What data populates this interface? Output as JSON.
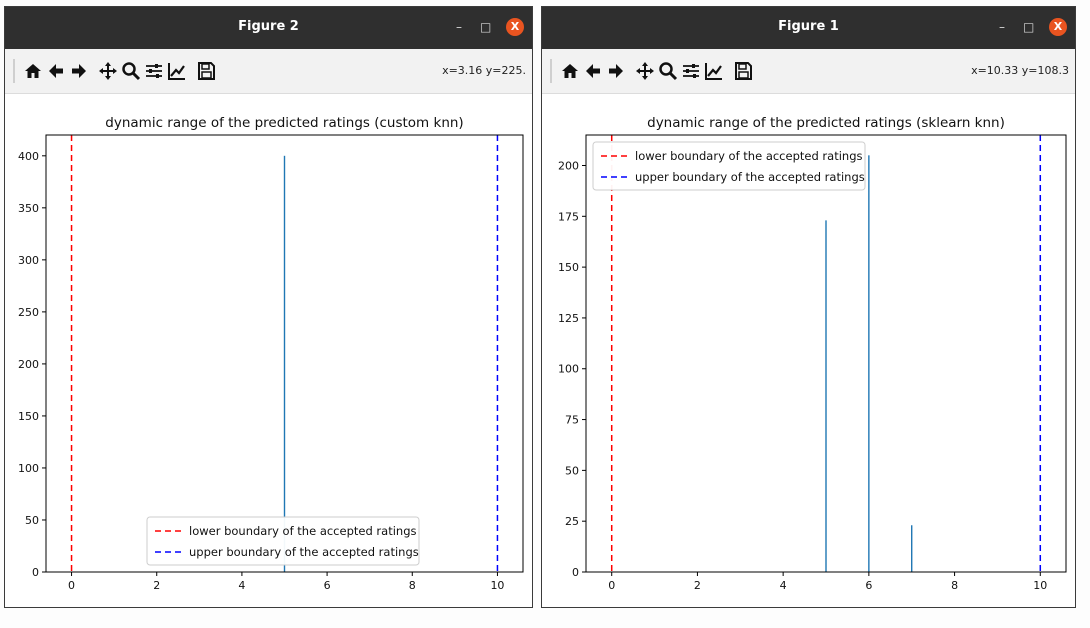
{
  "windows": [
    {
      "title": "Figure 2",
      "coords": "x=3.16 y=225.",
      "controls": {
        "minimize": "–",
        "maximize": "□",
        "close": "X"
      }
    },
    {
      "title": "Figure 1",
      "coords": "x=10.33 y=108.3",
      "controls": {
        "minimize": "–",
        "maximize": "□",
        "close": "X"
      }
    }
  ],
  "toolbar_icons": [
    "home-icon",
    "back-icon",
    "forward-icon",
    "pan-icon",
    "zoom-icon",
    "configure-subplots-icon",
    "edit-axis-icon",
    "save-icon"
  ],
  "chart_data": [
    {
      "type": "bar",
      "title": "dynamic range of the predicted ratings (custom knn)",
      "xlim": [
        -0.6,
        10.6
      ],
      "ylim": [
        0,
        420
      ],
      "xticks": [
        0,
        2,
        4,
        6,
        8,
        10
      ],
      "yticks": [
        0,
        50,
        100,
        150,
        200,
        250,
        300,
        350,
        400
      ],
      "bars": [
        {
          "x": 5,
          "value": 400
        }
      ],
      "bar_color": "#1f77b4",
      "lines": [
        {
          "x": 0,
          "label": "lower boundary of the accepted ratings",
          "color": "#ff0000",
          "style": "dashed"
        },
        {
          "x": 10,
          "label": "upper boundary of the accepted ratings",
          "color": "#0000ff",
          "style": "dashed"
        }
      ],
      "legend_position": "lower center"
    },
    {
      "type": "bar",
      "title": "dynamic range of the predicted ratings (sklearn knn)",
      "xlim": [
        -0.6,
        10.6
      ],
      "ylim": [
        0,
        215
      ],
      "xticks": [
        0,
        2,
        4,
        6,
        8,
        10
      ],
      "yticks": [
        0,
        25,
        50,
        75,
        100,
        125,
        150,
        175,
        200
      ],
      "bars": [
        {
          "x": 5,
          "value": 173
        },
        {
          "x": 6,
          "value": 205
        },
        {
          "x": 7,
          "value": 23
        }
      ],
      "bar_color": "#1f77b4",
      "lines": [
        {
          "x": 0,
          "label": "lower boundary of the accepted ratings",
          "color": "#ff0000",
          "style": "dashed"
        },
        {
          "x": 10,
          "label": "upper boundary of the accepted ratings",
          "color": "#0000ff",
          "style": "dashed"
        }
      ],
      "legend_position": "upper left"
    }
  ]
}
